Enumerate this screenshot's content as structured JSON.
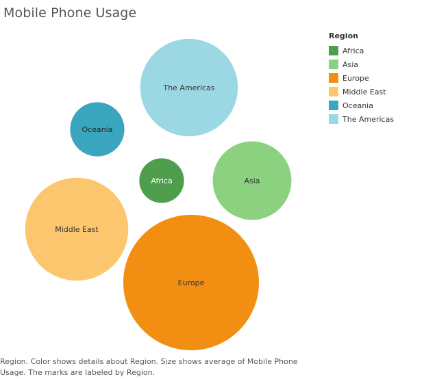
{
  "chart_data": {
    "type": "bubble",
    "title": "Mobile Phone Usage",
    "legend": {
      "title": "Region",
      "placement": "top-right",
      "entries": [
        "Africa",
        "Asia",
        "Europe",
        "Middle East",
        "Oceania",
        "The Americas"
      ]
    },
    "series": [
      {
        "name": "Africa",
        "color": "#4f9e4d",
        "label_color": "#ffffff",
        "relative_size": 0.33
      },
      {
        "name": "Asia",
        "color": "#8bd180",
        "label_color": "#333333",
        "relative_size": 0.58
      },
      {
        "name": "Europe",
        "color": "#f28e12",
        "label_color": "#333333",
        "relative_size": 1.0
      },
      {
        "name": "Middle East",
        "color": "#fcc66e",
        "label_color": "#333333",
        "relative_size": 0.76
      },
      {
        "name": "Oceania",
        "color": "#3aa6bd",
        "label_color": "#222222",
        "relative_size": 0.4
      },
      {
        "name": "The Americas",
        "color": "#9cd8e4",
        "label_color": "#333333",
        "relative_size": 0.72
      }
    ],
    "caption": "Region.  Color shows details about Region.  Size shows average of Mobile Phone Usage.  The marks are labeled by Region."
  }
}
